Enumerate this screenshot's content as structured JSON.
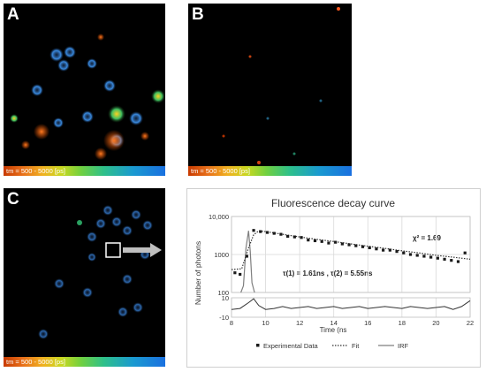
{
  "panels": [
    {
      "letter": "A",
      "scale_label": "tm = 500 - 5000 [ps]"
    },
    {
      "letter": "B",
      "scale_label": "tm = 500 - 5000 [ps]"
    },
    {
      "letter": "C",
      "scale_label": "tm = 500 - 5000 [ps]"
    }
  ],
  "colors": {
    "roi_box": "#ffffff",
    "arrow": "#bfbfbf",
    "data_marker": "#1a1a1a",
    "fit_line": "#333333",
    "irf_line": "#7f7f7f"
  },
  "chart_data": {
    "type": "scatter",
    "title": "Fluorescence decay curve",
    "xlabel": "Time (ns",
    "ylabel": "Number of photons",
    "xlim": [
      8,
      22
    ],
    "ylim": [
      100,
      10000
    ],
    "yscale": "log",
    "grid": true,
    "x_ticks": [
      "8",
      "10",
      "12",
      "14",
      "16",
      "18",
      "20",
      "22"
    ],
    "y_ticks": [
      "100",
      "1000",
      "10,000"
    ],
    "residual_ticks": [
      "10",
      "-10"
    ],
    "residual_ylim": [
      -10,
      10
    ],
    "legend_position": "bottom",
    "annotations": {
      "chi2": "χ² = 1.69",
      "taus": "τ(1) = 1.61ns , τ(2) = 5.55ns"
    },
    "series": [
      {
        "name": "Experimental Data",
        "style": "markers",
        "x": [
          8.2,
          8.5,
          8.9,
          9.3,
          9.7,
          10.1,
          10.5,
          10.9,
          11.3,
          11.7,
          12.1,
          12.5,
          12.9,
          13.3,
          13.7,
          14.1,
          14.5,
          14.9,
          15.3,
          15.7,
          16.1,
          16.5,
          16.9,
          17.3,
          17.7,
          18.1,
          18.5,
          18.9,
          19.3,
          19.7,
          20.1,
          20.5,
          20.9,
          21.3,
          21.7
        ],
        "y": [
          330,
          300,
          900,
          4300,
          4000,
          3800,
          3600,
          3400,
          3000,
          2900,
          2800,
          2400,
          2300,
          2200,
          2000,
          2100,
          1900,
          1800,
          1700,
          1600,
          1500,
          1400,
          1300,
          1300,
          1200,
          1100,
          1000,
          950,
          900,
          850,
          800,
          750,
          700,
          650,
          1100
        ]
      },
      {
        "name": "Fit",
        "style": "dotted",
        "x": [
          8.0,
          8.6,
          9.0,
          9.3,
          9.6,
          10.0,
          11,
          12,
          13,
          14,
          15,
          16,
          17,
          18,
          19,
          20,
          21,
          22
        ],
        "y": [
          400,
          420,
          1500,
          3300,
          4200,
          4000,
          3400,
          2900,
          2500,
          2200,
          1900,
          1650,
          1450,
          1250,
          1100,
          950,
          850,
          750
        ]
      },
      {
        "name": "IRF",
        "style": "line",
        "x": [
          8.55,
          8.7,
          8.85,
          9.0,
          9.1,
          9.2,
          9.35
        ],
        "y": [
          100,
          150,
          1500,
          4200,
          1200,
          180,
          100
        ]
      },
      {
        "name": "Residuals",
        "style": "line",
        "x": [
          8.0,
          8.5,
          9.0,
          9.3,
          9.6,
          10.0,
          10.5,
          11,
          11.5,
          12,
          12.5,
          13,
          13.5,
          14,
          14.5,
          15,
          15.5,
          16,
          16.5,
          17,
          17.5,
          18,
          18.5,
          19,
          19.5,
          20,
          20.5,
          21,
          21.5,
          22
        ],
        "y": [
          -2,
          -1,
          5,
          9,
          2,
          -2,
          -1,
          1,
          -1,
          0,
          1,
          -1,
          0,
          1,
          -1,
          0,
          1,
          -1,
          0,
          1,
          0,
          -1,
          1,
          0,
          -1,
          0,
          1,
          -2,
          1,
          7
        ]
      }
    ]
  }
}
